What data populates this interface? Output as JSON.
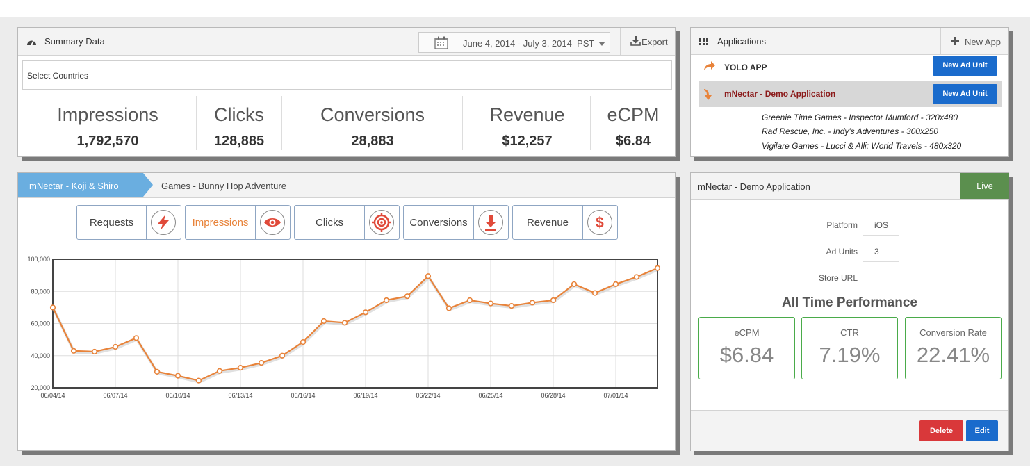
{
  "summary": {
    "title": "Summary Data",
    "date_range": "June 4, 2014 - July 3, 2014",
    "timezone": "PST",
    "export_label": "Export",
    "countries_placeholder": "Select Countries",
    "stats": [
      {
        "label": "Impressions",
        "value": "1,792,570"
      },
      {
        "label": "Clicks",
        "value": "128,885"
      },
      {
        "label": "Conversions",
        "value": "28,883"
      },
      {
        "label": "Revenue",
        "value": "$12,257"
      },
      {
        "label": "eCPM",
        "value": "$6.84"
      }
    ]
  },
  "applications": {
    "title": "Applications",
    "new_app_label": "New App",
    "apps": [
      {
        "name": "YOLO APP",
        "button": "New Ad Unit"
      },
      {
        "name": "mNectar - Demo Application",
        "button": "New Ad Unit"
      }
    ],
    "ad_units": [
      "Greenie Time Games - Inspector Mumford - 320x480",
      "Rad Rescue, Inc. - Indy's Adventures - 300x250",
      "Vigilare Games - Lucci & Alli: World Travels - 480x320"
    ]
  },
  "chart_panel": {
    "breadcrumb": [
      "mNectar - Koji & Shiro",
      "Games - Bunny Hop Adventure"
    ],
    "metrics": [
      {
        "label": "Requests",
        "icon": "lightning-icon"
      },
      {
        "label": "Impressions",
        "icon": "eye-icon"
      },
      {
        "label": "Clicks",
        "icon": "target-icon"
      },
      {
        "label": "Conversions",
        "icon": "download-icon"
      },
      {
        "label": "Revenue",
        "icon": "dollar-icon"
      }
    ],
    "active_metric": "Impressions",
    "accent_color": "#e8833a"
  },
  "chart_data": {
    "type": "line",
    "title": "",
    "xlabel": "",
    "ylabel": "",
    "ylim": [
      20000,
      100000
    ],
    "yticks": [
      "20,000",
      "40,000",
      "60,000",
      "80,000",
      "100,000"
    ],
    "yticks_values": [
      20000,
      40000,
      60000,
      80000,
      100000
    ],
    "xtick_labels": [
      "06/04/14",
      "06/07/14",
      "06/10/14",
      "06/13/14",
      "06/16/14",
      "06/19/14",
      "06/22/14",
      "06/25/14",
      "06/28/14",
      "07/01/14"
    ],
    "grid": true,
    "series": [
      {
        "name": "",
        "color": "#e8833a",
        "x": [
          "06/04/14",
          "06/05/14",
          "06/06/14",
          "06/07/14",
          "06/08/14",
          "06/09/14",
          "06/10/14",
          "06/11/14",
          "06/12/14",
          "06/13/14",
          "06/14/14",
          "06/15/14",
          "06/16/14",
          "06/17/14",
          "06/18/14",
          "06/19/14",
          "06/20/14",
          "06/21/14",
          "06/22/14",
          "06/23/14",
          "06/24/14",
          "06/25/14",
          "06/26/14",
          "06/27/14",
          "06/28/14",
          "06/29/14",
          "06/30/14",
          "07/01/14",
          "07/02/14",
          "07/03/14"
        ],
        "values": [
          70000,
          43000,
          42500,
          45500,
          51000,
          30000,
          27500,
          24500,
          30500,
          32500,
          35500,
          40000,
          48500,
          61500,
          60500,
          67000,
          74500,
          77000,
          89500,
          69500,
          74500,
          72500,
          71000,
          73000,
          74500,
          84500,
          79000,
          84500,
          89000,
          94500
        ]
      }
    ]
  },
  "app_detail": {
    "title": "mNectar - Demo Application",
    "status": "Live",
    "status_color": "#5b8f4e",
    "info": [
      {
        "key": "Platform",
        "value": "iOS"
      },
      {
        "key": "Ad Units",
        "value": "3"
      },
      {
        "key": "Store URL",
        "value": ""
      }
    ],
    "performance_title": "All Time Performance",
    "performance": [
      {
        "label": "eCPM",
        "value": "$6.84"
      },
      {
        "label": "CTR",
        "value": "7.19%"
      },
      {
        "label": "Conversion Rate",
        "value": "22.41%"
      }
    ],
    "delete_label": "Delete",
    "edit_label": "Edit"
  }
}
